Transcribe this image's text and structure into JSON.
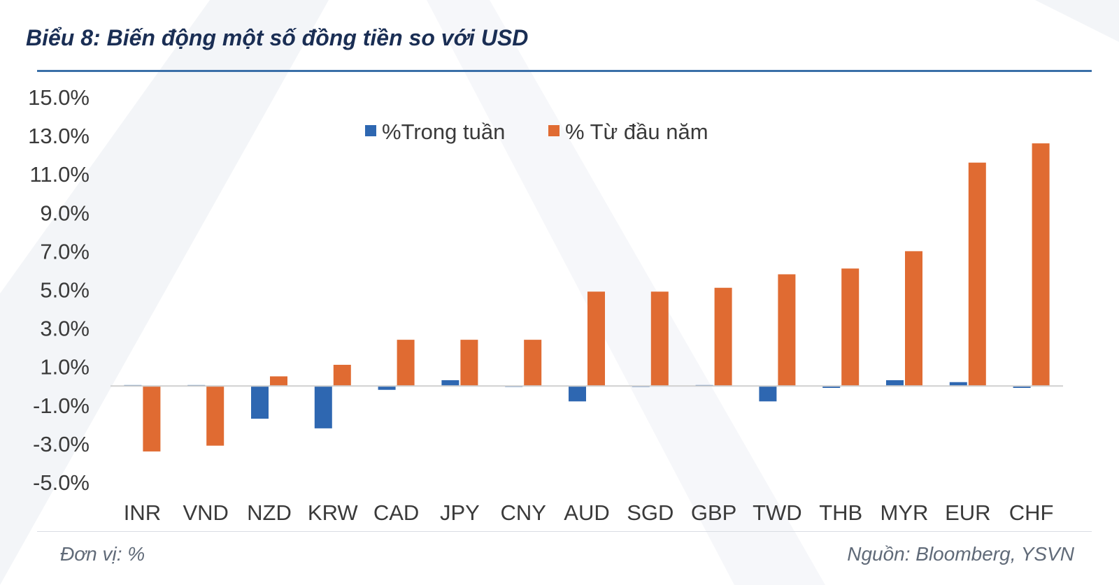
{
  "header": {
    "title": "Biểu 8: Biến động một số đồng tiền so với USD"
  },
  "footer": {
    "unit": "Đơn vị: %",
    "source": "Nguồn: Bloomberg, YSVN"
  },
  "colors": {
    "series_week": "#2e67b1",
    "series_ytd": "#e06b32",
    "title": "#1a2e54",
    "rule": "#3a6fa8"
  },
  "chart_data": {
    "type": "bar",
    "categories": [
      "INR",
      "VND",
      "NZD",
      "KRW",
      "CAD",
      "JPY",
      "CNY",
      "AUD",
      "SGD",
      "GBP",
      "TWD",
      "THB",
      "MYR",
      "EUR",
      "CHF"
    ],
    "series": [
      {
        "name": "%Trong tuần",
        "values": [
          0.05,
          0.05,
          -1.7,
          -2.2,
          -0.2,
          0.3,
          -0.05,
          -0.8,
          -0.05,
          0.05,
          -0.8,
          -0.1,
          0.3,
          0.2,
          -0.1
        ]
      },
      {
        "name": "% Từ đầu năm",
        "values": [
          -3.4,
          -3.1,
          0.5,
          1.1,
          2.4,
          2.4,
          2.4,
          4.9,
          4.9,
          5.1,
          5.8,
          6.1,
          7.0,
          11.6,
          12.6
        ]
      }
    ],
    "y_ticks": [
      "15.0%",
      "13.0%",
      "11.0%",
      "9.0%",
      "7.0%",
      "5.0%",
      "3.0%",
      "1.0%",
      "-1.0%",
      "-3.0%",
      "-5.0%"
    ],
    "ylim": [
      -5,
      15
    ],
    "grid": false,
    "legend_position": "top-center"
  }
}
